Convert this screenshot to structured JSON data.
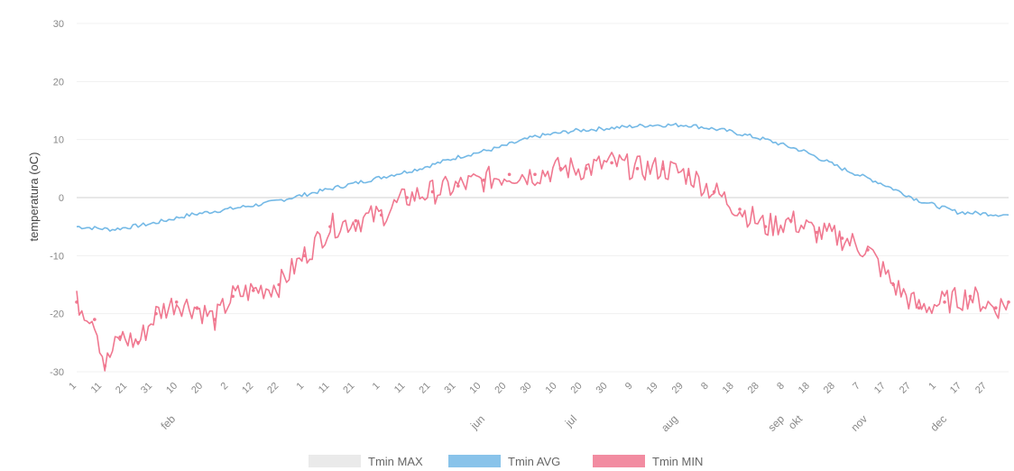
{
  "chart_data": {
    "type": "line",
    "ylabel": "temperatura (oC)",
    "ylim": [
      -30,
      30
    ],
    "y_ticks": [
      "30",
      "20",
      "10",
      "0",
      "-10",
      "-20",
      "-30"
    ],
    "grid": "y",
    "legend_position": "bottom",
    "x_tick_labels": [
      "1",
      "11",
      "21",
      "31",
      "10",
      "20",
      "2",
      "12",
      "22",
      "1",
      "11",
      "21",
      "1",
      "11",
      "21",
      "31",
      "10",
      "20",
      "30",
      "10",
      "20",
      "30",
      "9",
      "19",
      "29",
      "8",
      "18",
      "28",
      "8",
      "18",
      "28",
      "7",
      "17",
      "27",
      "1",
      "17",
      "27"
    ],
    "month_labels": [
      "feb",
      "jun",
      "jul",
      "aug",
      "sep",
      "okt",
      "nov",
      "dec"
    ],
    "series": [
      {
        "name": "Tmin MAX",
        "color": "#e6e6e6",
        "visible": false,
        "x": [],
        "y": []
      },
      {
        "name": "Tmin AVG",
        "color": "#74b9e6",
        "x": [
          1,
          15,
          30,
          45,
          60,
          75,
          90,
          105,
          120,
          135,
          150,
          165,
          180,
          195,
          210,
          225,
          240,
          255,
          270,
          285,
          300,
          315,
          330,
          345,
          365
        ],
        "y": [
          -5,
          -5.5,
          -4.5,
          -3,
          -2,
          -1,
          0.5,
          2,
          3.5,
          5,
          7,
          8.5,
          10.5,
          11.5,
          12,
          12.5,
          12.5,
          11.5,
          10,
          8,
          5,
          2.5,
          -0.5,
          -2.5,
          -3
        ]
      },
      {
        "name": "Tmin MIN",
        "color": "#f07890",
        "x": [
          1,
          8,
          12,
          18,
          25,
          32,
          40,
          48,
          55,
          62,
          70,
          80,
          90,
          100,
          110,
          120,
          130,
          140,
          150,
          160,
          170,
          180,
          190,
          200,
          210,
          220,
          230,
          240,
          250,
          260,
          270,
          280,
          290,
          300,
          310,
          320,
          330,
          340,
          350,
          360,
          365
        ],
        "y": [
          -18,
          -21,
          -29,
          -24,
          -25,
          -20,
          -18,
          -19,
          -21,
          -17,
          -16,
          -15,
          -10,
          -5,
          -4,
          -3,
          0,
          1,
          2,
          3,
          4,
          4,
          5,
          5,
          6,
          5,
          5,
          4,
          1,
          -2,
          -5,
          -4,
          -6,
          -7,
          -9,
          -15,
          -19,
          -18,
          -17,
          -19,
          -18
        ]
      }
    ]
  }
}
